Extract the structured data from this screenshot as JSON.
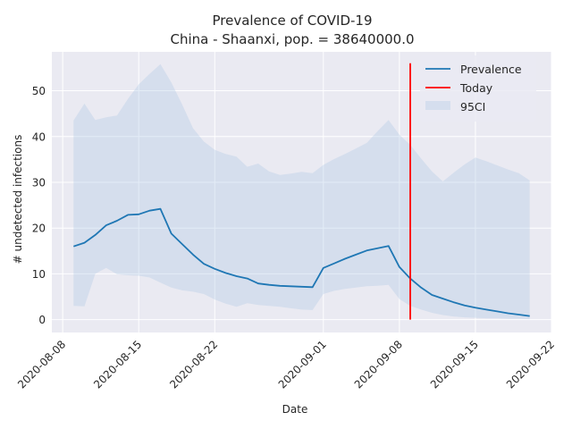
{
  "chart_data": {
    "type": "line",
    "title": "Prevalence of COVID-19",
    "subtitle": "China - Shaanxi, pop. = 38640000.0",
    "xlabel": "Date",
    "ylabel": "# undetected infections",
    "xlim": [
      "2020-08-07",
      "2020-09-22"
    ],
    "ylim": [
      -2.8,
      58.5
    ],
    "x_ticks": [
      "2020-08-08",
      "2020-08-15",
      "2020-08-22",
      "2020-09-01",
      "2020-09-08",
      "2020-09-15",
      "2020-09-22"
    ],
    "y_ticks": [
      0,
      10,
      20,
      30,
      40,
      50
    ],
    "grid": true,
    "legend_position": "top-right",
    "colors": {
      "background": "#eaeaf2",
      "grid": "#ffffff",
      "prevalence": "#1f77b4",
      "today": "#ff0000",
      "ci": "#b0c8e4"
    },
    "series": [
      {
        "name": "Prevalence",
        "x": [
          "2020-08-09",
          "2020-08-10",
          "2020-08-11",
          "2020-08-12",
          "2020-08-13",
          "2020-08-14",
          "2020-08-15",
          "2020-08-16",
          "2020-08-17",
          "2020-08-18",
          "2020-08-19",
          "2020-08-20",
          "2020-08-21",
          "2020-08-22",
          "2020-08-23",
          "2020-08-24",
          "2020-08-25",
          "2020-08-26",
          "2020-08-27",
          "2020-08-28",
          "2020-08-29",
          "2020-08-30",
          "2020-08-31",
          "2020-09-01",
          "2020-09-02",
          "2020-09-03",
          "2020-09-04",
          "2020-09-05",
          "2020-09-06",
          "2020-09-07",
          "2020-09-08",
          "2020-09-09",
          "2020-09-10",
          "2020-09-11",
          "2020-09-12",
          "2020-09-13",
          "2020-09-14",
          "2020-09-15",
          "2020-09-16",
          "2020-09-17",
          "2020-09-18",
          "2020-09-19",
          "2020-09-20"
        ],
        "values": [
          16.0,
          16.8,
          18.5,
          20.6,
          21.6,
          22.9,
          23.0,
          23.8,
          24.2,
          18.8,
          16.5,
          14.2,
          12.2,
          11.1,
          10.2,
          9.5,
          9.0,
          7.9,
          7.6,
          7.4,
          7.3,
          7.2,
          7.1,
          11.3,
          12.3,
          13.3,
          14.2,
          15.1,
          15.6,
          16.1,
          11.5,
          9.0,
          7.0,
          5.4,
          4.6,
          3.8,
          3.1,
          2.6,
          2.2,
          1.8,
          1.4,
          1.1,
          0.8
        ]
      },
      {
        "name": "Today",
        "x": [
          "2020-09-09",
          "2020-09-09"
        ],
        "values": [
          0,
          56
        ]
      },
      {
        "name": "95CI",
        "x": [
          "2020-08-09",
          "2020-08-10",
          "2020-08-11",
          "2020-08-12",
          "2020-08-13",
          "2020-08-14",
          "2020-08-15",
          "2020-08-16",
          "2020-08-17",
          "2020-08-18",
          "2020-08-19",
          "2020-08-20",
          "2020-08-21",
          "2020-08-22",
          "2020-08-23",
          "2020-08-24",
          "2020-08-25",
          "2020-08-26",
          "2020-08-27",
          "2020-08-28",
          "2020-08-29",
          "2020-08-30",
          "2020-08-31",
          "2020-09-01",
          "2020-09-02",
          "2020-09-03",
          "2020-09-04",
          "2020-09-05",
          "2020-09-06",
          "2020-09-07",
          "2020-09-08",
          "2020-09-09",
          "2020-09-10",
          "2020-09-11",
          "2020-09-12",
          "2020-09-13",
          "2020-09-14",
          "2020-09-15",
          "2020-09-16",
          "2020-09-17",
          "2020-09-18",
          "2020-09-19",
          "2020-09-20"
        ],
        "upper": [
          43.5,
          47.2,
          43.6,
          44.2,
          44.6,
          48.2,
          51.4,
          53.7,
          55.8,
          51.8,
          47.0,
          41.8,
          38.9,
          37.1,
          36.2,
          35.6,
          33.4,
          34.1,
          32.4,
          31.6,
          31.9,
          32.3,
          32.0,
          33.8,
          35.1,
          36.2,
          37.4,
          38.6,
          41.2,
          43.6,
          40.4,
          38.2,
          35.2,
          32.4,
          30.2,
          32.1,
          33.9,
          35.4,
          34.6,
          33.7,
          32.8,
          32.0,
          30.4
        ],
        "lower": [
          3.0,
          2.9,
          10.0,
          11.3,
          9.9,
          9.7,
          9.6,
          9.2,
          8.1,
          7.0,
          6.4,
          6.1,
          5.6,
          4.4,
          3.5,
          2.8,
          3.6,
          3.2,
          3.0,
          2.8,
          2.5,
          2.2,
          2.1,
          5.6,
          6.3,
          6.7,
          7.0,
          7.3,
          7.4,
          7.6,
          4.5,
          3.0,
          2.2,
          1.5,
          1.0,
          0.7,
          0.5,
          0.4,
          0.3,
          0.3,
          0.2,
          0.2,
          0.1
        ]
      }
    ]
  }
}
